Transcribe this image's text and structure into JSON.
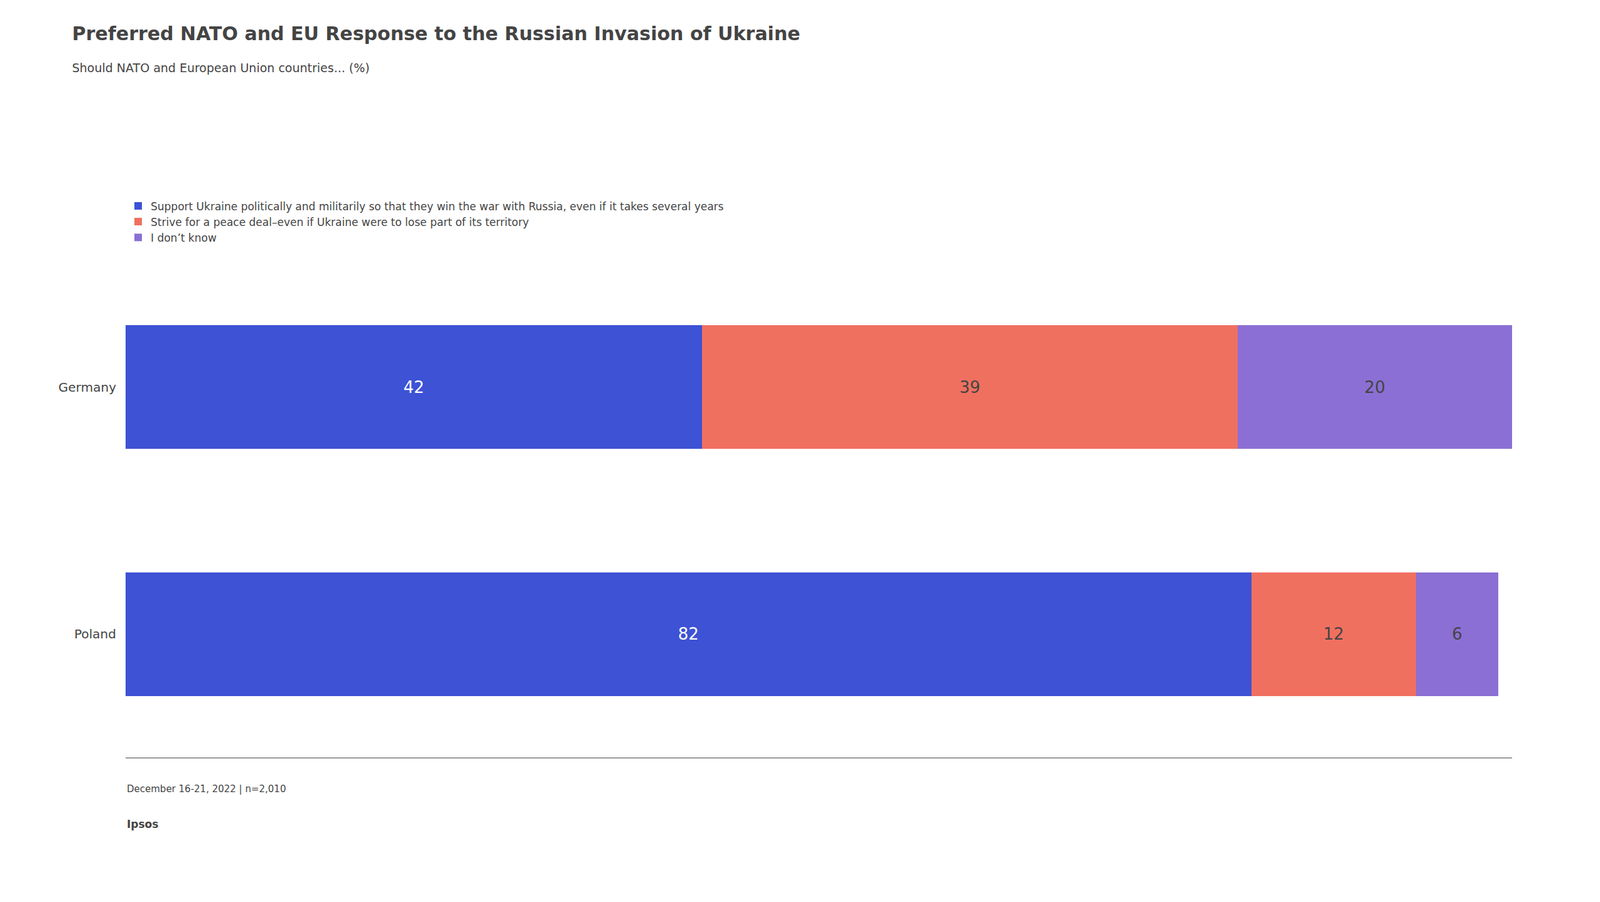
{
  "chart_data": {
    "type": "bar",
    "orientation": "horizontal",
    "stacked": true,
    "title": "Preferred NATO and EU Response to the Russian Invasion of Ukraine",
    "subtitle": "Should NATO and European Union countries... (%)",
    "categories": [
      "Germany",
      "Poland"
    ],
    "series": [
      {
        "name": "Support Ukraine politically and militarily so that they win the war with Russia, even if it takes several years",
        "color": "#3d52d5",
        "values": [
          42,
          82
        ]
      },
      {
        "name": "Strive for a peace deal–even if Ukraine were to lose part of its territory",
        "color": "#f07060",
        "values": [
          39,
          12
        ]
      },
      {
        "name": "I don’t know",
        "color": "#8b6fd4",
        "values": [
          20,
          6
        ]
      }
    ],
    "xlim": [
      0,
      101
    ],
    "tick_labels": "y",
    "grid": false,
    "legend": "top left",
    "data_labels": true,
    "annotations": [
      "December 16-21, 2022 | n=2,010",
      "Ipsos"
    ]
  }
}
